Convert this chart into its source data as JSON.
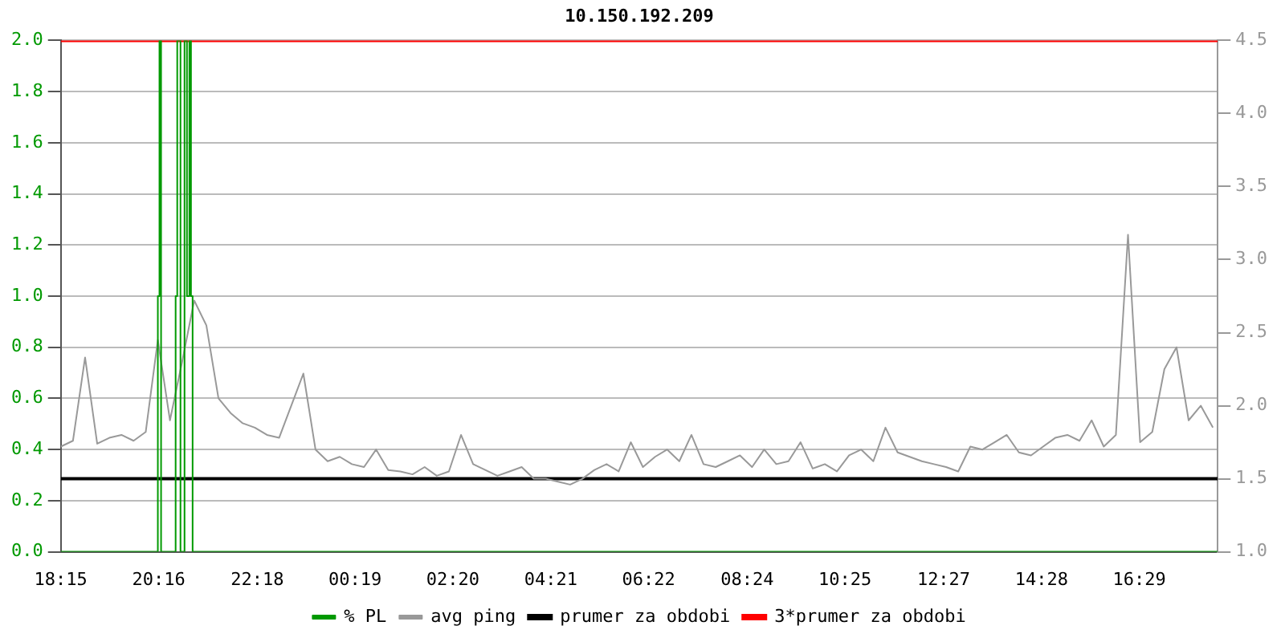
{
  "chart_data": {
    "type": "line",
    "title": "10.150.192.209",
    "grid": "y",
    "legend": "bottom",
    "marker": "none",
    "xlim": [
      "--01-01T18:15",
      "--01-02T18:06"
    ],
    "xticks": [
      {
        "value": "--01-01T18:15",
        "label": "18:15"
      },
      {
        "value": "--01-01T20:16",
        "label": "20:16"
      },
      {
        "value": "--01-01T22:18",
        "label": "22:18"
      },
      {
        "value": "--01-02T00:19",
        "label": "00:19"
      },
      {
        "value": "--01-02T02:20",
        "label": "02:20"
      },
      {
        "value": "--01-02T04:21",
        "label": "04:21"
      },
      {
        "value": "--01-02T06:22",
        "label": "06:22"
      },
      {
        "value": "--01-02T08:24",
        "label": "08:24"
      },
      {
        "value": "--01-02T10:25",
        "label": "10:25"
      },
      {
        "value": "--01-02T12:27",
        "label": "12:27"
      },
      {
        "value": "--01-02T14:28",
        "label": "14:28"
      },
      {
        "value": "--01-02T16:29",
        "label": "16:29"
      }
    ],
    "ylim": [
      0,
      2
    ],
    "yticks": [
      {
        "value": 0,
        "label": "0.0"
      },
      {
        "value": 0.2,
        "label": "0.2"
      },
      {
        "value": 0.4,
        "label": "0.4"
      },
      {
        "value": 0.6,
        "label": "0.6"
      },
      {
        "value": 0.8,
        "label": "0.8"
      },
      {
        "value": 1,
        "label": "1.0"
      },
      {
        "value": 1.2,
        "label": "1.2"
      },
      {
        "value": 1.4,
        "label": "1.4"
      },
      {
        "value": 1.6,
        "label": "1.6"
      },
      {
        "value": 1.8,
        "label": "1.8"
      },
      {
        "value": 2,
        "label": "2.0"
      }
    ],
    "y2lim": [
      1,
      4.5
    ],
    "y2ticks": [
      {
        "value": 1,
        "label": "1.0"
      },
      {
        "value": 1.5,
        "label": "1.5"
      },
      {
        "value": 2,
        "label": "2.0"
      },
      {
        "value": 2.5,
        "label": "2.5"
      },
      {
        "value": 3,
        "label": "3.0"
      },
      {
        "value": 3.5,
        "label": "3.5"
      },
      {
        "value": 4,
        "label": "4.0"
      },
      {
        "value": 4.5,
        "label": "4.5"
      }
    ],
    "series": [
      {
        "name": "% PL",
        "type": "step",
        "color": "#009900",
        "x": [
          "--01-01T18:15",
          "--01-01T20:15",
          "--01-01T20:17",
          "--01-01T20:19",
          "--01-01T20:37",
          "--01-01T20:39",
          "--01-01T20:43",
          "--01-01T20:48",
          "--01-01T20:51",
          "--01-01T20:54",
          "--01-01T20:56",
          "--01-01T20:58",
          "--01-02T18:06"
        ],
        "values": [
          0,
          1,
          2,
          0,
          1,
          2,
          0,
          2,
          1,
          2,
          1,
          0,
          0
        ]
      },
      {
        "name": "avg ping",
        "type": "line",
        "axis": "y2",
        "color": "#999999",
        "x": [
          "--01-01T18:15",
          "--01-01T18:30",
          "--01-01T18:45",
          "--01-01T19:00",
          "--01-01T19:15",
          "--01-01T19:30",
          "--01-01T19:45",
          "--01-01T20:00",
          "--01-01T20:15",
          "--01-01T20:30",
          "--01-01T20:45",
          "--01-01T21:00",
          "--01-01T21:15",
          "--01-01T21:30",
          "--01-01T21:45",
          "--01-01T22:00",
          "--01-01T22:15",
          "--01-01T22:30",
          "--01-01T22:45",
          "--01-01T23:00",
          "--01-01T23:15",
          "--01-01T23:30",
          "--01-01T23:45",
          "--01-02T00:00",
          "--01-02T00:15",
          "--01-02T00:30",
          "--01-02T00:45",
          "--01-02T01:00",
          "--01-02T01:15",
          "--01-02T01:30",
          "--01-02T01:45",
          "--01-02T02:00",
          "--01-02T02:15",
          "--01-02T02:30",
          "--01-02T02:45",
          "--01-02T03:00",
          "--01-02T03:15",
          "--01-02T03:30",
          "--01-02T03:45",
          "--01-02T04:00",
          "--01-02T04:15",
          "--01-02T04:30",
          "--01-02T04:45",
          "--01-02T05:00",
          "--01-02T05:15",
          "--01-02T05:30",
          "--01-02T05:45",
          "--01-02T06:00",
          "--01-02T06:15",
          "--01-02T06:30",
          "--01-02T06:45",
          "--01-02T07:00",
          "--01-02T07:15",
          "--01-02T07:30",
          "--01-02T07:45",
          "--01-02T08:00",
          "--01-02T08:15",
          "--01-02T08:30",
          "--01-02T08:45",
          "--01-02T09:00",
          "--01-02T09:15",
          "--01-02T09:30",
          "--01-02T09:45",
          "--01-02T10:00",
          "--01-02T10:15",
          "--01-02T10:30",
          "--01-02T10:45",
          "--01-02T11:00",
          "--01-02T11:15",
          "--01-02T11:30",
          "--01-02T11:45",
          "--01-02T12:00",
          "--01-02T12:15",
          "--01-02T12:30",
          "--01-02T12:45",
          "--01-02T13:00",
          "--01-02T13:15",
          "--01-02T13:30",
          "--01-02T13:45",
          "--01-02T14:00",
          "--01-02T14:15",
          "--01-02T14:30",
          "--01-02T14:45",
          "--01-02T15:00",
          "--01-02T15:15",
          "--01-02T15:30",
          "--01-02T15:45",
          "--01-02T16:00",
          "--01-02T16:15",
          "--01-02T16:30",
          "--01-02T16:45",
          "--01-02T17:00",
          "--01-02T17:15",
          "--01-02T17:30",
          "--01-02T17:45",
          "--01-02T18:00"
        ],
        "values": [
          1.72,
          1.76,
          2.33,
          1.74,
          1.78,
          1.8,
          1.76,
          1.82,
          2.45,
          1.9,
          2.3,
          2.72,
          2.55,
          2.05,
          1.95,
          1.88,
          1.85,
          1.8,
          1.78,
          2.0,
          2.22,
          1.7,
          1.62,
          1.65,
          1.6,
          1.58,
          1.7,
          1.56,
          1.55,
          1.53,
          1.58,
          1.52,
          1.55,
          1.8,
          1.6,
          1.56,
          1.52,
          1.55,
          1.58,
          1.5,
          1.5,
          1.48,
          1.46,
          1.5,
          1.56,
          1.6,
          1.55,
          1.75,
          1.58,
          1.65,
          1.7,
          1.62,
          1.8,
          1.6,
          1.58,
          1.62,
          1.66,
          1.58,
          1.7,
          1.6,
          1.62,
          1.75,
          1.57,
          1.6,
          1.55,
          1.66,
          1.7,
          1.62,
          1.85,
          1.68,
          1.65,
          1.62,
          1.6,
          1.58,
          1.55,
          1.72,
          1.7,
          1.75,
          1.8,
          1.68,
          1.66,
          1.72,
          1.78,
          1.8,
          1.76,
          1.9,
          1.72,
          1.8,
          3.17,
          1.75,
          1.82,
          2.25,
          2.4,
          1.9,
          2.0,
          1.85
        ]
      }
    ],
    "ref_lines": [
      {
        "axis": "y2",
        "value": 1.5,
        "label": "prumer za obdobi",
        "color": "#000000"
      },
      {
        "axis": "y2",
        "value": 4.5,
        "label": "3*prumer za obdobi",
        "color": "#ff0000"
      }
    ]
  }
}
